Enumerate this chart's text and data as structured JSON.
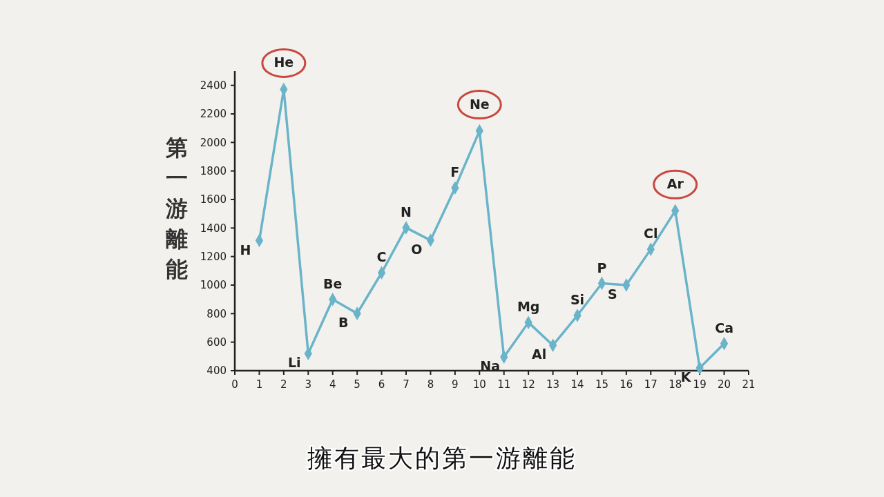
{
  "chart_data": {
    "type": "line",
    "ylabel": "第一游離能",
    "x": [
      1,
      2,
      3,
      4,
      5,
      6,
      7,
      8,
      9,
      10,
      11,
      12,
      13,
      14,
      15,
      16,
      17,
      18,
      19,
      20
    ],
    "series": [
      {
        "color": "#6ab4c9",
        "values": [
          1312,
          2372,
          520,
          900,
          801,
          1086,
          1402,
          1314,
          1681,
          2081,
          496,
          738,
          578,
          787,
          1012,
          1000,
          1251,
          1521,
          419,
          590
        ]
      }
    ],
    "xlim": [
      0,
      21
    ],
    "xticks": [
      0,
      1,
      2,
      3,
      4,
      5,
      6,
      7,
      8,
      9,
      10,
      11,
      12,
      13,
      14,
      15,
      16,
      17,
      18,
      19,
      20,
      21
    ],
    "ylim": [
      400,
      2500
    ],
    "yticks": [
      400,
      600,
      800,
      1000,
      1200,
      1400,
      1600,
      1800,
      2000,
      2200,
      2400
    ],
    "grid": false,
    "marker": "diamond",
    "line_style": "solid",
    "annotations": [
      {
        "text": "H",
        "x": 1,
        "y": 1312
      },
      {
        "text": "He",
        "x": 2,
        "y": 2372
      },
      {
        "text": "Li",
        "x": 3,
        "y": 520
      },
      {
        "text": "Be",
        "x": 4,
        "y": 900
      },
      {
        "text": "B",
        "x": 5,
        "y": 801
      },
      {
        "text": "C",
        "x": 6,
        "y": 1086
      },
      {
        "text": "N",
        "x": 7,
        "y": 1402
      },
      {
        "text": "O",
        "x": 8,
        "y": 1314
      },
      {
        "text": "F",
        "x": 9,
        "y": 1681
      },
      {
        "text": "Ne",
        "x": 10,
        "y": 2081
      },
      {
        "text": "Na",
        "x": 11,
        "y": 496
      },
      {
        "text": "Mg",
        "x": 12,
        "y": 738
      },
      {
        "text": "Al",
        "x": 13,
        "y": 578
      },
      {
        "text": "Si",
        "x": 14,
        "y": 787
      },
      {
        "text": "P",
        "x": 15,
        "y": 1012
      },
      {
        "text": "S",
        "x": 16,
        "y": 1000
      },
      {
        "text": "Cl",
        "x": 17,
        "y": 1251
      },
      {
        "text": "Ar",
        "x": 18,
        "y": 1521
      },
      {
        "text": "K",
        "x": 19,
        "y": 419
      },
      {
        "text": "Ca",
        "x": 20,
        "y": 590
      },
      "擁有最大的第一游離能"
    ]
  }
}
